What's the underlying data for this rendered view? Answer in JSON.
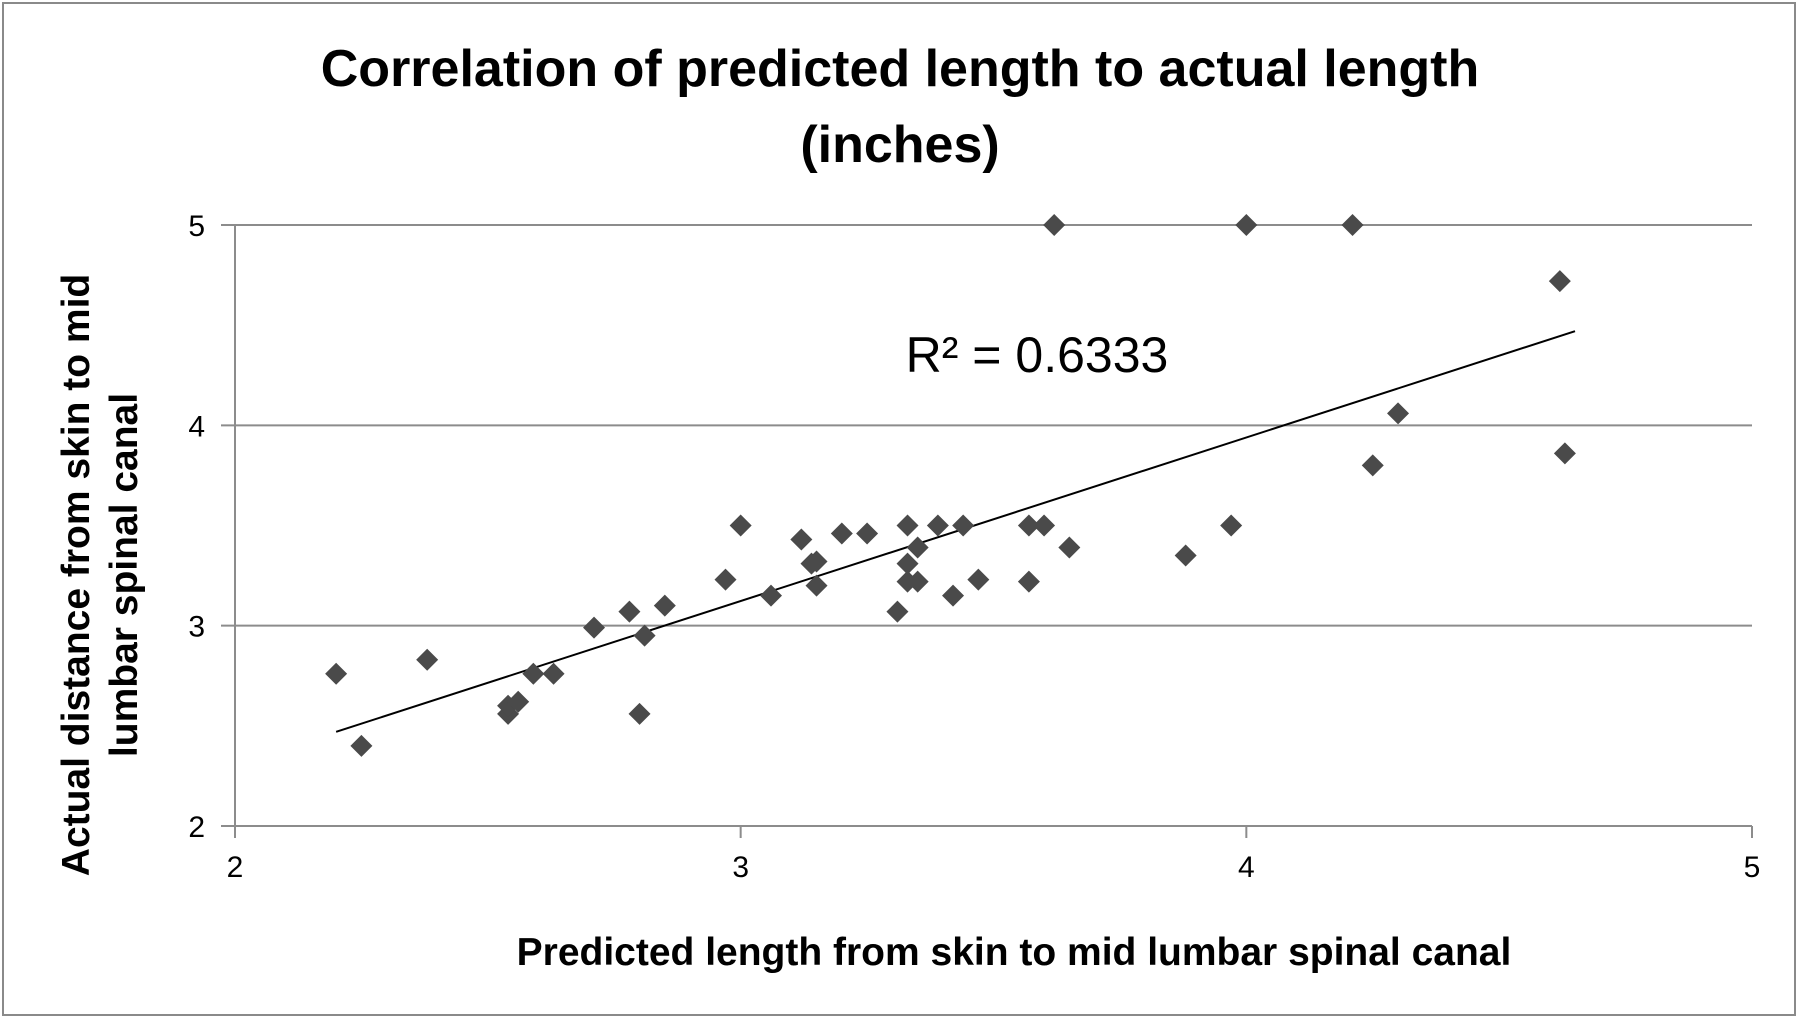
{
  "chart_data": {
    "type": "scatter",
    "title_lines": [
      "Correlation of predicted length to actual length",
      "(inches)"
    ],
    "xlabel": "Predicted length from skin to mid lumbar spinal canal",
    "ylabel_lines": [
      "Actual distance from skin to mid",
      "lumbar spinal canal"
    ],
    "xlim": [
      2,
      5
    ],
    "ylim": [
      2,
      5
    ],
    "x_ticks": [
      "2",
      "3",
      "4",
      "5"
    ],
    "y_ticks": [
      "2",
      "3",
      "4",
      "5"
    ],
    "gridlines": "horizontal",
    "marker": "diamond",
    "marker_color": "#4a4a4a",
    "trendline": {
      "x": [
        2.2,
        4.65
      ],
      "y": [
        2.47,
        4.47
      ],
      "color": "#000000"
    },
    "annotation": "R² = 0.6333",
    "points": [
      {
        "x": 2.2,
        "y": 2.76
      },
      {
        "x": 2.25,
        "y": 2.4
      },
      {
        "x": 2.38,
        "y": 2.83
      },
      {
        "x": 2.54,
        "y": 2.56
      },
      {
        "x": 2.54,
        "y": 2.6
      },
      {
        "x": 2.56,
        "y": 2.62
      },
      {
        "x": 2.59,
        "y": 2.76
      },
      {
        "x": 2.63,
        "y": 2.76
      },
      {
        "x": 2.71,
        "y": 2.99
      },
      {
        "x": 2.78,
        "y": 3.07
      },
      {
        "x": 2.8,
        "y": 2.56
      },
      {
        "x": 2.81,
        "y": 2.95
      },
      {
        "x": 2.85,
        "y": 3.1
      },
      {
        "x": 2.97,
        "y": 3.23
      },
      {
        "x": 3.0,
        "y": 3.5
      },
      {
        "x": 3.06,
        "y": 3.15
      },
      {
        "x": 3.12,
        "y": 3.43
      },
      {
        "x": 3.14,
        "y": 3.31
      },
      {
        "x": 3.15,
        "y": 3.32
      },
      {
        "x": 3.15,
        "y": 3.2
      },
      {
        "x": 3.2,
        "y": 3.46
      },
      {
        "x": 3.25,
        "y": 3.46
      },
      {
        "x": 3.31,
        "y": 3.07
      },
      {
        "x": 3.33,
        "y": 3.5
      },
      {
        "x": 3.33,
        "y": 3.31
      },
      {
        "x": 3.33,
        "y": 3.22
      },
      {
        "x": 3.35,
        "y": 3.39
      },
      {
        "x": 3.35,
        "y": 3.22
      },
      {
        "x": 3.39,
        "y": 3.5
      },
      {
        "x": 3.42,
        "y": 3.15
      },
      {
        "x": 3.44,
        "y": 3.5
      },
      {
        "x": 3.47,
        "y": 3.23
      },
      {
        "x": 3.57,
        "y": 3.5
      },
      {
        "x": 3.57,
        "y": 3.22
      },
      {
        "x": 3.6,
        "y": 3.5
      },
      {
        "x": 3.62,
        "y": 5.0
      },
      {
        "x": 3.65,
        "y": 3.39
      },
      {
        "x": 3.88,
        "y": 3.35
      },
      {
        "x": 3.97,
        "y": 3.5
      },
      {
        "x": 4.0,
        "y": 5.0
      },
      {
        "x": 4.21,
        "y": 5.0
      },
      {
        "x": 4.25,
        "y": 3.8
      },
      {
        "x": 4.3,
        "y": 4.06
      },
      {
        "x": 4.62,
        "y": 4.72
      },
      {
        "x": 4.63,
        "y": 3.86
      }
    ]
  }
}
